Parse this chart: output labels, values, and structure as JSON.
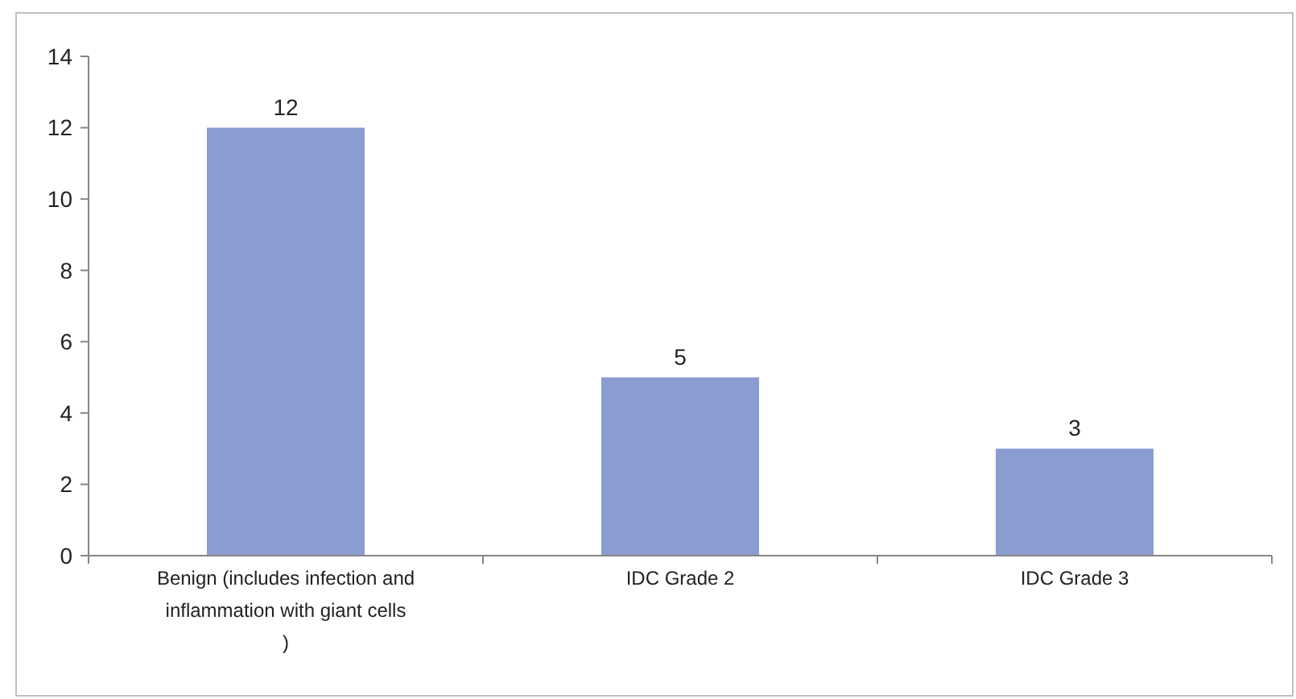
{
  "chart_data": {
    "type": "bar",
    "categories": [
      "Benign (includes infection and inflammation with giant cells )",
      "IDC Grade 2",
      "IDC Grade 3"
    ],
    "values": [
      12,
      5,
      3
    ],
    "color": "#8b9dd0",
    "ylim": [
      0,
      14
    ],
    "yticks": [
      0,
      2,
      4,
      6,
      8,
      10,
      12,
      14
    ],
    "grid": false,
    "data_labels": true
  }
}
